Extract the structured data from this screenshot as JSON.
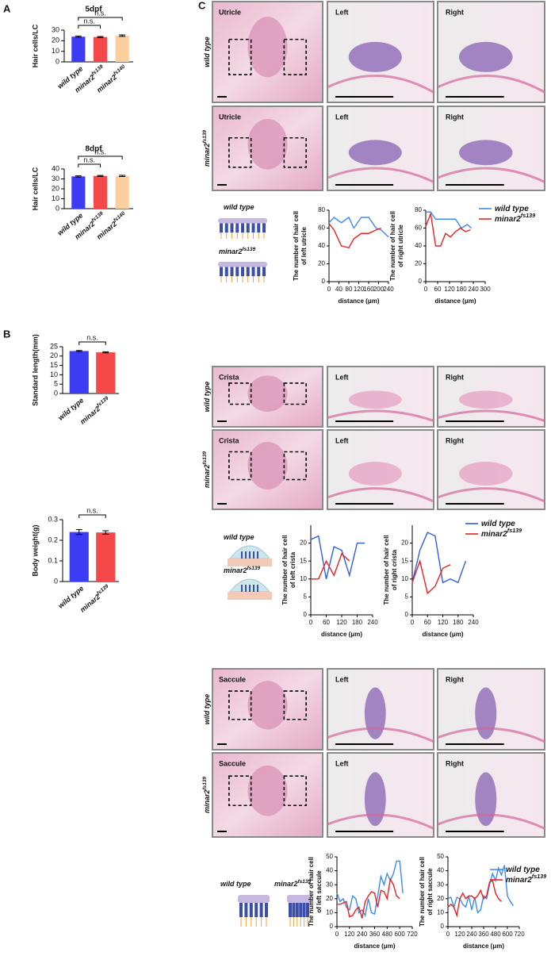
{
  "panel_labels": [
    "A",
    "B",
    "C"
  ],
  "genotypes": {
    "wt": {
      "text": "wild type"
    },
    "fs139": {
      "text": "minar2",
      "sup": "fs139"
    }
  },
  "histology": [
    {
      "region": "Utricle",
      "columns": [
        "Left",
        "Right"
      ]
    },
    {
      "region": "Crista",
      "columns": [
        "Left",
        "Right"
      ]
    },
    {
      "region": "Saccule",
      "columns": [
        "Left",
        "Right"
      ]
    }
  ],
  "chart_data": [
    {
      "type": "bar",
      "title": "5dpf",
      "y_label": "Hair cells/LC",
      "categories": [
        {
          "text": "wild type"
        },
        {
          "text": "minar2",
          "sup": "fs139"
        },
        {
          "text": "minar2",
          "sup": "fs140"
        }
      ],
      "values": [
        23.8,
        23.5,
        24.8
      ],
      "errors": [
        0.6,
        0.5,
        0.7
      ],
      "colors": [
        "#3c3cf5",
        "#f54848",
        "#fbcf9e"
      ],
      "ylim": [
        0,
        30
      ],
      "yticks": [
        0,
        10,
        20,
        30
      ],
      "annotations": [
        "n.s.",
        "n.s."
      ]
    },
    {
      "type": "bar",
      "title": "8dpf",
      "y_label": "Hair cells/LC",
      "categories": [
        {
          "text": "wild type"
        },
        {
          "text": "minar2",
          "sup": "fs139"
        },
        {
          "text": "minar2",
          "sup": "fs140"
        }
      ],
      "values": [
        32.5,
        33,
        33
      ],
      "errors": [
        0.6,
        0.5,
        0.6
      ],
      "colors": [
        "#3c3cf5",
        "#f54848",
        "#fbcf9e"
      ],
      "ylim": [
        0,
        40
      ],
      "yticks": [
        0,
        10,
        20,
        30,
        40
      ],
      "annotations": [
        "n.s.",
        "n.s."
      ]
    },
    {
      "type": "bar",
      "y_label": "Standard length(mm)",
      "categories": [
        {
          "text": "wild type"
        },
        {
          "text": "minar2",
          "sup": "fs139"
        }
      ],
      "values": [
        22.7,
        22.0
      ],
      "errors": [
        0.3,
        0.3
      ],
      "colors": [
        "#3c3cf5",
        "#f54848"
      ],
      "ylim": [
        0,
        25
      ],
      "yticks": [
        0,
        5,
        10,
        15,
        20,
        25
      ],
      "annotations": [
        "n.s."
      ]
    },
    {
      "type": "bar",
      "y_label": "Body weight(g)",
      "categories": [
        {
          "text": "wild type"
        },
        {
          "text": "minar2",
          "sup": "fs139"
        }
      ],
      "values": [
        0.24,
        0.238
      ],
      "errors": [
        0.012,
        0.008
      ],
      "colors": [
        "#3c3cf5",
        "#f54848"
      ],
      "ylim": [
        0,
        0.3
      ],
      "yticks": [
        0,
        0.1,
        0.2,
        0.3
      ],
      "annotations": [
        "n.s."
      ]
    },
    {
      "type": "line",
      "y_label": [
        "The number of hair cell",
        "of left utricle"
      ],
      "x_label": "distance (μm)",
      "xlim": [
        0,
        240
      ],
      "xticks": [
        0,
        40,
        80,
        120,
        160,
        200,
        240
      ],
      "ylim": [
        0,
        80
      ],
      "yticks": [
        0,
        20,
        40,
        60,
        80
      ],
      "series": [
        {
          "color": "#3d8bf0",
          "x": [
            0,
            20,
            50,
            80,
            100,
            130,
            160,
            190,
            210,
            240
          ],
          "values": [
            66,
            72,
            66,
            72,
            60,
            72,
            72,
            60,
            58,
            50
          ]
        },
        {
          "color": "#e8231f",
          "x": [
            0,
            20,
            50,
            80,
            100,
            130,
            160,
            190,
            210
          ],
          "values": [
            65,
            58,
            40,
            38,
            48,
            54,
            54,
            58,
            60
          ]
        }
      ]
    },
    {
      "type": "line",
      "y_label": [
        "The number of hair cell",
        "of right utricle"
      ],
      "x_label": "distance (μm)",
      "xlim": [
        0,
        300
      ],
      "xticks": [
        0,
        60,
        120,
        180,
        240,
        300
      ],
      "ylim": [
        0,
        80
      ],
      "yticks": [
        0,
        20,
        40,
        60,
        80
      ],
      "series": [
        {
          "name": {
            "text": "wild type"
          },
          "color": "#3d8bf0",
          "x": [
            0,
            25,
            50,
            100,
            150,
            180,
            210,
            230
          ],
          "values": [
            78,
            78,
            70,
            70,
            70,
            60,
            64,
            60
          ]
        },
        {
          "name": {
            "text": "minar2",
            "sup": "fs139"
          },
          "color": "#e8231f",
          "x": [
            0,
            25,
            50,
            75,
            100,
            125,
            150,
            175,
            200,
            225
          ],
          "values": [
            62,
            76,
            40,
            40,
            54,
            50,
            56,
            60,
            56,
            58
          ]
        }
      ]
    },
    {
      "type": "line",
      "y_label": [
        "The number of hair cell",
        "of left crista"
      ],
      "x_label": "distance (μm)",
      "xlim": [
        0,
        240
      ],
      "xticks": [
        0,
        60,
        120,
        180,
        240
      ],
      "ylim": [
        0,
        25
      ],
      "yticks": [
        0,
        5,
        10,
        15,
        20
      ],
      "series": [
        {
          "color": "#2f5fe0",
          "x": [
            0,
            30,
            60,
            90,
            120,
            150,
            180,
            210
          ],
          "values": [
            21,
            22,
            10,
            19,
            18,
            11,
            20,
            20
          ]
        },
        {
          "color": "#e8231f",
          "x": [
            0,
            30,
            60,
            90,
            120,
            150
          ],
          "values": [
            10,
            10,
            15,
            11,
            17,
            15
          ]
        }
      ]
    },
    {
      "type": "line",
      "y_label": [
        "The number of hair cell",
        "of right crista"
      ],
      "x_label": "distance (μm)",
      "xlim": [
        0,
        240
      ],
      "xticks": [
        0,
        60,
        120,
        180,
        240
      ],
      "ylim": [
        0,
        25
      ],
      "yticks": [
        0,
        5,
        10,
        15,
        20
      ],
      "series": [
        {
          "name": {
            "text": "wild type"
          },
          "color": "#2f5fe0",
          "x": [
            0,
            30,
            60,
            90,
            120,
            150,
            180,
            210
          ],
          "values": [
            9,
            18,
            23,
            22,
            9,
            10,
            9,
            15
          ]
        },
        {
          "name": {
            "text": "minar2",
            "sup": "fs139"
          },
          "color": "#e8231f",
          "x": [
            0,
            30,
            60,
            90,
            120,
            150
          ],
          "values": [
            9,
            15,
            6,
            8,
            13,
            14
          ]
        }
      ]
    },
    {
      "type": "line",
      "y_label": [
        "The number of hair cell",
        "of left saccule"
      ],
      "x_label": "distance (μm)",
      "xlim": [
        0,
        720
      ],
      "xticks": [
        0,
        120,
        240,
        360,
        480,
        600,
        720
      ],
      "ylim": [
        0,
        50
      ],
      "yticks": [
        0,
        10,
        20,
        30,
        40,
        50
      ],
      "series": [
        {
          "color": "#3d8bf0",
          "x": [
            0,
            30,
            60,
            90,
            120,
            150,
            180,
            210,
            240,
            270,
            300,
            330,
            360,
            390,
            420,
            450,
            480,
            510,
            540,
            570,
            600,
            630
          ],
          "values": [
            24,
            18,
            20,
            14,
            12,
            22,
            20,
            10,
            12,
            8,
            20,
            10,
            9,
            22,
            36,
            30,
            38,
            33,
            38,
            47,
            47,
            24
          ]
        },
        {
          "color": "#e8231f",
          "x": [
            0,
            30,
            60,
            90,
            120,
            150,
            180,
            210,
            240,
            270,
            300,
            330,
            360,
            390,
            420,
            450,
            480,
            510,
            540,
            570,
            600
          ],
          "values": [
            16,
            16,
            17,
            18,
            7,
            8,
            12,
            14,
            6,
            18,
            22,
            25,
            24,
            14,
            26,
            25,
            20,
            34,
            30,
            22,
            20
          ]
        }
      ]
    },
    {
      "type": "line",
      "y_label": [
        "The number of hair cell",
        "of right saccule"
      ],
      "x_label": "distance (μm)",
      "xlim": [
        0,
        720
      ],
      "xticks": [
        0,
        120,
        240,
        360,
        480,
        600,
        720
      ],
      "ylim": [
        0,
        50
      ],
      "yticks": [
        0,
        10,
        20,
        30,
        40,
        50
      ],
      "series": [
        {
          "name": {
            "text": "wild type"
          },
          "color": "#3d8bf0",
          "x": [
            0,
            30,
            60,
            90,
            120,
            150,
            180,
            210,
            240,
            270,
            300,
            330,
            360,
            390,
            420,
            450,
            480,
            510,
            540,
            570,
            600,
            630,
            660
          ],
          "values": [
            20,
            21,
            14,
            21,
            20,
            16,
            14,
            22,
            12,
            21,
            10,
            12,
            22,
            20,
            30,
            38,
            33,
            42,
            37,
            44,
            22,
            18,
            15
          ]
        },
        {
          "name": {
            "text": "minar2",
            "sup": "fs139"
          },
          "color": "#e8231f",
          "x": [
            0,
            30,
            60,
            90,
            120,
            150,
            180,
            210,
            240,
            270,
            300,
            330,
            360,
            390,
            420,
            450,
            480,
            510,
            540
          ],
          "values": [
            14,
            16,
            14,
            8,
            20,
            24,
            20,
            22,
            22,
            20,
            22,
            26,
            20,
            22,
            32,
            33,
            24,
            20,
            18
          ]
        }
      ]
    }
  ]
}
